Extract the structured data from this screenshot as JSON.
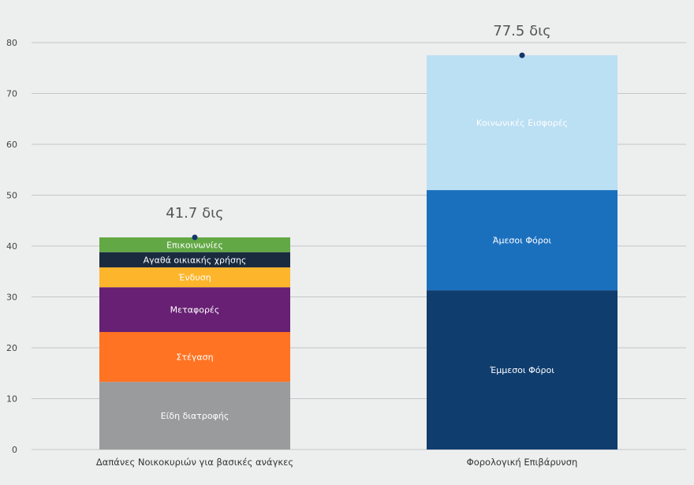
{
  "chart_data": {
    "type": "bar",
    "stacked": true,
    "title": "",
    "xlabel": "",
    "ylabel": "",
    "ylim": [
      0,
      80
    ],
    "yticks": [
      0,
      10,
      20,
      30,
      40,
      50,
      60,
      70,
      80
    ],
    "grid": true,
    "categories": [
      "Δαπάνες Νοικοκυριών για βασικές ανάγκες",
      "Φορολογική Επιβάρυνση"
    ],
    "bars": [
      {
        "category": "Δαπάνες Νοικοκυριών για βασικές ανάγκες",
        "total_label": "41.7 δις",
        "total": 41.7,
        "segments": [
          {
            "name": "Είδη διατροφής",
            "value": 13.3,
            "color": "#9a9b9d"
          },
          {
            "name": "Στέγαση",
            "value": 9.8,
            "color": "#ff7322"
          },
          {
            "name": "Μεταφορές",
            "value": 8.8,
            "color": "#672073"
          },
          {
            "name": "Ένδυση",
            "value": 3.9,
            "color": "#fdb52b"
          },
          {
            "name": "Αγαθά οικιακής χρήσης",
            "value": 3.0,
            "color": "#1a2b40"
          },
          {
            "name": "Επικοινωνίες",
            "value": 2.9,
            "color": "#62a844"
          }
        ]
      },
      {
        "category": "Φορολογική Επιβάρυνση",
        "total_label": "77.5 δις",
        "total": 77.5,
        "segments": [
          {
            "name": "Έμμεσοι Φόροι",
            "value": 31.3,
            "color": "#0f3d6e"
          },
          {
            "name": "Άμεσοι Φόροι",
            "value": 19.7,
            "color": "#1b70be"
          },
          {
            "name": "Κοινωνικές Εισφορές",
            "value": 26.5,
            "color": "#bbdff3"
          }
        ]
      }
    ],
    "marker_color": "#14366b"
  }
}
